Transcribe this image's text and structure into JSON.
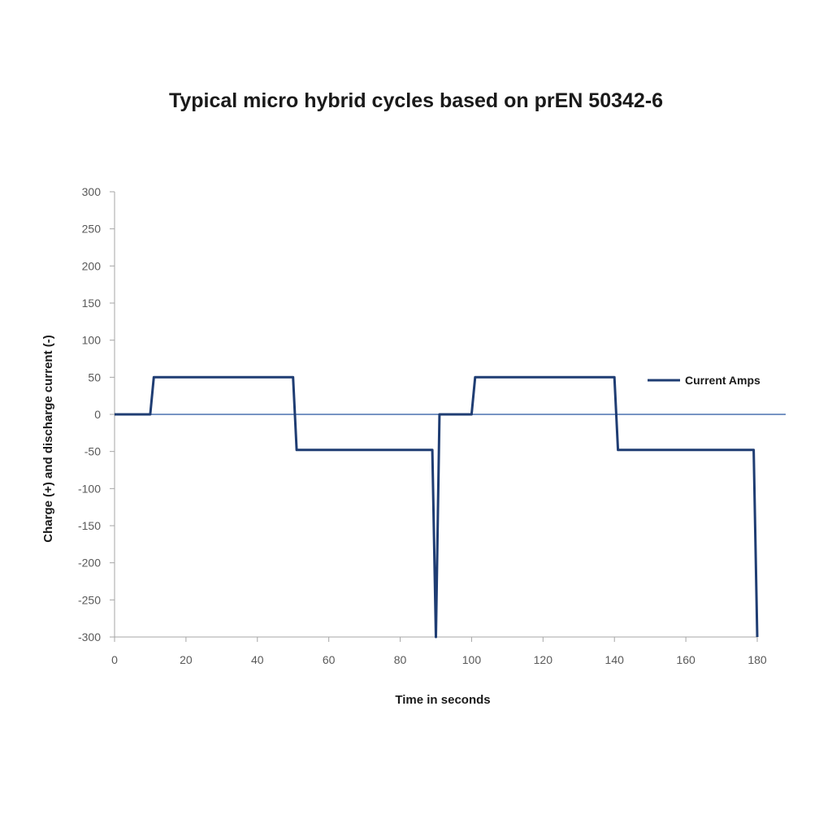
{
  "chart_data": {
    "type": "line",
    "title": "Typical micro hybrid cycles based on prEN 50342-6",
    "xlabel": "Time in seconds",
    "ylabel": "Charge (+) and discharge current (-)",
    "xlim": [
      0,
      180
    ],
    "ylim": [
      -300,
      300
    ],
    "x_ticks": [
      0,
      20,
      40,
      60,
      80,
      100,
      120,
      140,
      160,
      180
    ],
    "y_ticks": [
      300,
      250,
      200,
      150,
      100,
      50,
      0,
      -50,
      -100,
      -150,
      -200,
      -250,
      -300
    ],
    "grid": false,
    "legend_position": "right",
    "series": [
      {
        "name": "Current Amps",
        "color": "#1f3d73",
        "x": [
          0,
          10,
          11,
          50,
          51,
          89,
          90,
          91,
          100,
          101,
          140,
          141,
          179,
          180
        ],
        "y": [
          0,
          0,
          50,
          50,
          -48,
          -48,
          -300,
          0,
          0,
          50,
          50,
          -48,
          -48,
          -300
        ]
      }
    ]
  }
}
